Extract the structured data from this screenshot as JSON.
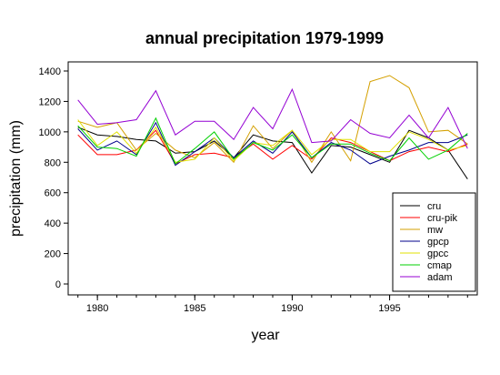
{
  "chart_data": {
    "type": "line",
    "title": "annual precipitation 1979-1999",
    "xlabel": "year",
    "ylabel": "precipitation (mm)",
    "xlim": [
      1978.5,
      1999.5
    ],
    "ylim": [
      0,
      1400
    ],
    "xticks": [
      1980,
      1985,
      1990,
      1995
    ],
    "yticks": [
      0,
      200,
      400,
      600,
      800,
      1000,
      1200,
      1400
    ],
    "grid": false,
    "legend_position": "bottom-right",
    "x": [
      1979,
      1980,
      1981,
      1982,
      1983,
      1984,
      1985,
      1986,
      1987,
      1988,
      1989,
      1990,
      1991,
      1992,
      1993,
      1994,
      1995,
      1996,
      1997,
      1998,
      1999
    ],
    "series": [
      {
        "name": "cru",
        "color": "#000000",
        "values": [
          1030,
          980,
          970,
          950,
          940,
          860,
          870,
          940,
          830,
          980,
          940,
          930,
          730,
          910,
          900,
          850,
          800,
          1010,
          960,
          880,
          690
        ]
      },
      {
        "name": "cru-pik",
        "color": "#ff0000",
        "values": [
          980,
          850,
          850,
          880,
          1010,
          790,
          850,
          860,
          830,
          920,
          820,
          910,
          820,
          960,
          930,
          870,
          810,
          870,
          900,
          870,
          920
        ]
      },
      {
        "name": "mw",
        "color": "#d4a000",
        "values": [
          1070,
          1030,
          1060,
          880,
          990,
          880,
          830,
          930,
          800,
          1040,
          890,
          1010,
          800,
          1000,
          810,
          1330,
          1370,
          1290,
          1000,
          1010,
          920
        ]
      },
      {
        "name": "gpcp",
        "color": "#00008b",
        "values": [
          1020,
          880,
          940,
          850,
          1060,
          780,
          870,
          960,
          830,
          940,
          860,
          1000,
          830,
          930,
          880,
          790,
          840,
          880,
          930,
          930,
          980
        ]
      },
      {
        "name": "gpcc",
        "color": "#e0e000",
        "values": [
          1080,
          910,
          1000,
          860,
          1030,
          800,
          820,
          960,
          810,
          930,
          910,
          1010,
          850,
          950,
          950,
          870,
          870,
          1000,
          950,
          880,
          910
        ]
      },
      {
        "name": "cmap",
        "color": "#00d000",
        "values": [
          1040,
          900,
          890,
          840,
          1090,
          790,
          890,
          1000,
          820,
          930,
          880,
          980,
          830,
          920,
          920,
          860,
          810,
          960,
          820,
          880,
          990
        ]
      },
      {
        "name": "adam",
        "color": "#9400d3",
        "values": [
          1210,
          1050,
          1060,
          1080,
          1270,
          980,
          1070,
          1070,
          950,
          1160,
          1020,
          1280,
          930,
          940,
          1080,
          990,
          960,
          1110,
          960,
          1160,
          890
        ]
      }
    ]
  }
}
